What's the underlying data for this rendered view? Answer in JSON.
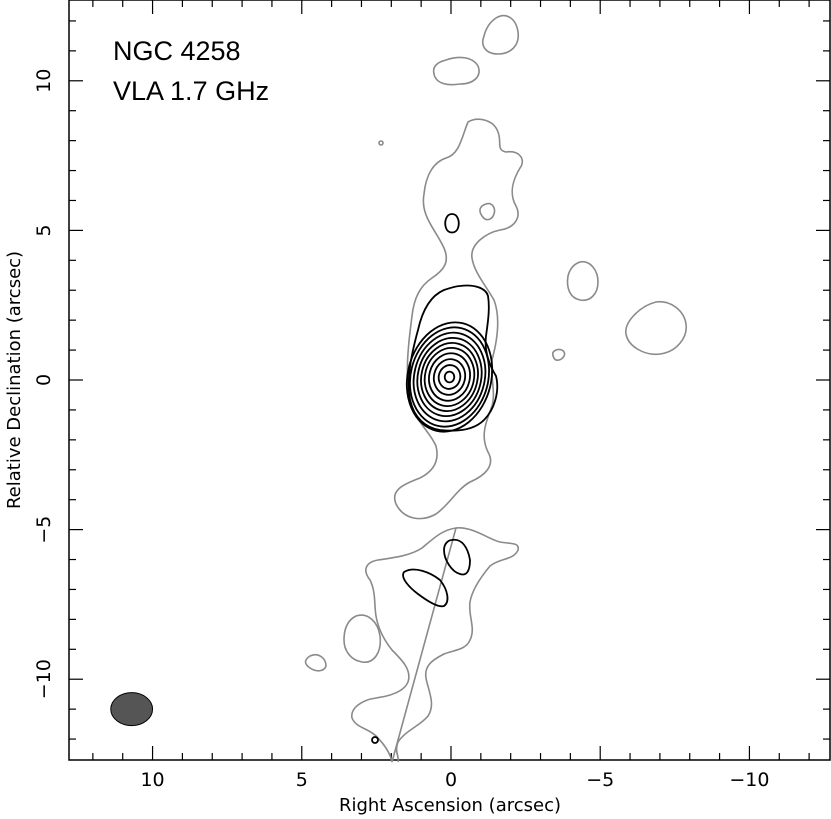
{
  "chart_data": {
    "type": "contour",
    "annotations": [
      "NGC 4258",
      "VLA 1.7 GHz"
    ],
    "xlabel": "Right Ascension  (arcsec)",
    "ylabel": "Relative Declination  (arcsec)",
    "xlim": [
      12.8,
      -12.7
    ],
    "ylim": [
      -12.7,
      12.7
    ],
    "x_ticks": [
      10,
      5,
      0,
      -5,
      -10
    ],
    "x_tick_labels": [
      "10",
      "5",
      "0",
      "−5",
      "−10"
    ],
    "y_ticks": [
      10,
      5,
      0,
      -5,
      -10
    ],
    "y_tick_labels": [
      "10",
      "5",
      "0",
      "−5",
      "−10"
    ],
    "x_direction": "decreasing to the right (east left)",
    "beam": {
      "x": 10.7,
      "y": -11.0,
      "major_axis": 1.4,
      "minor_axis": 1.1,
      "color": "#555555"
    },
    "core_peak": {
      "x": 0.0,
      "y": 0.1
    },
    "core_contours": [
      {
        "cx": 0.05,
        "cy": 0.1,
        "rx": 1.4,
        "ry": 1.85,
        "angle": 14
      },
      {
        "cx": 0.05,
        "cy": 0.1,
        "rx": 1.3,
        "ry": 1.68,
        "angle": 14
      },
      {
        "cx": 0.05,
        "cy": 0.1,
        "rx": 1.18,
        "ry": 1.5,
        "angle": 14
      },
      {
        "cx": 0.05,
        "cy": 0.1,
        "rx": 1.06,
        "ry": 1.32,
        "angle": 14
      },
      {
        "cx": 0.05,
        "cy": 0.1,
        "rx": 0.94,
        "ry": 1.15,
        "angle": 14
      },
      {
        "cx": 0.05,
        "cy": 0.1,
        "rx": 0.82,
        "ry": 0.98,
        "angle": 14
      },
      {
        "cx": 0.05,
        "cy": 0.1,
        "rx": 0.68,
        "ry": 0.8,
        "angle": 14
      },
      {
        "cx": 0.05,
        "cy": 0.1,
        "rx": 0.52,
        "ry": 0.6,
        "angle": 14
      },
      {
        "cx": 0.05,
        "cy": 0.1,
        "rx": 0.36,
        "ry": 0.4,
        "angle": 14
      },
      {
        "cx": 0.05,
        "cy": 0.1,
        "rx": 0.16,
        "ry": 0.18,
        "angle": 0
      }
    ],
    "colors": {
      "outer_contour": "#8a8a8a",
      "inner_contour": "#000000",
      "beam": "#555555"
    }
  }
}
